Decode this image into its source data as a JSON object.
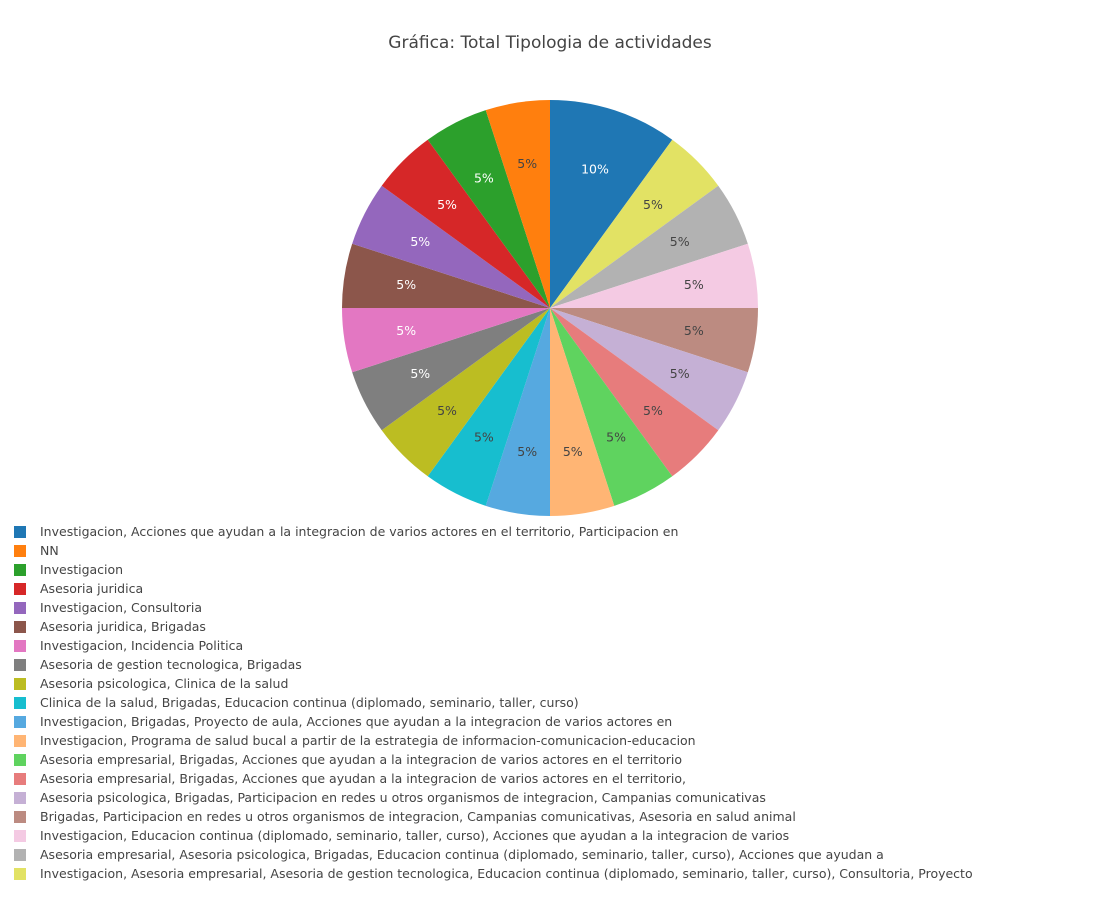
{
  "chart_data": {
    "type": "pie",
    "title": "Gráfica: Total Tipologia de actividades",
    "legend_position": "bottom-left",
    "slices": [
      {
        "label": "Investigacion, Acciones que ayudan a la integracion de varios actores en el territorio, Participacion en",
        "value": 10,
        "text": "10%",
        "color": "#1f77b4"
      },
      {
        "label": "Investigacion, Asesoria empresarial, Asesoria de gestion tecnologica, Educacion continua (diplomado, seminario, taller, curso), Consultoria, Proyecto",
        "value": 5,
        "text": "5%",
        "color": "#e2e264"
      },
      {
        "label": "Asesoria empresarial, Asesoria psicologica, Brigadas, Educacion continua (diplomado, seminario, taller, curso), Acciones que ayudan a",
        "value": 5,
        "text": "5%",
        "color": "#b2b2b2"
      },
      {
        "label": "Investigacion, Educacion continua (diplomado, seminario, taller, curso), Acciones que ayudan a la integracion de varios",
        "value": 5,
        "text": "5%",
        "color": "#f4cae3"
      },
      {
        "label": "Brigadas, Participacion en redes u otros organismos de integracion, Campanias comunicativas, Asesoria en salud animal",
        "value": 5,
        "text": "5%",
        "color": "#bc8b81"
      },
      {
        "label": "Asesoria psicologica, Brigadas, Participacion en redes u otros organismos de integracion, Campanias comunicativas",
        "value": 5,
        "text": "5%",
        "color": "#c5b0d5"
      },
      {
        "label": "Asesoria empresarial, Brigadas, Acciones que ayudan a la integracion de varios actores en el territorio,",
        "value": 5,
        "text": "5%",
        "color": "#e77c7c"
      },
      {
        "label": "Asesoria empresarial, Brigadas, Acciones que ayudan a la integracion de varios actores en el territorio",
        "value": 5,
        "text": "5%",
        "color": "#5fd35f"
      },
      {
        "label": "Investigacion, Programa de salud bucal a partir de la estrategia de informacion-comunicacion-educacion",
        "value": 5,
        "text": "5%",
        "color": "#ffb574"
      },
      {
        "label": "Investigacion, Brigadas, Proyecto de aula, Acciones que ayudan a la integracion de varios actores en",
        "value": 5,
        "text": "5%",
        "color": "#56a9e0"
      },
      {
        "label": "Clinica de la salud, Brigadas, Educacion continua (diplomado, seminario, taller, curso)",
        "value": 5,
        "text": "5%",
        "color": "#17becf"
      },
      {
        "label": "Asesoria psicologica, Clinica de la salud",
        "value": 5,
        "text": "5%",
        "color": "#bcbd22"
      },
      {
        "label": "Asesoria de gestion tecnologica, Brigadas",
        "value": 5,
        "text": "5%",
        "color": "#7f7f7f"
      },
      {
        "label": "Investigacion, Incidencia Politica",
        "value": 5,
        "text": "5%",
        "color": "#e377c2"
      },
      {
        "label": "Asesoria juridica, Brigadas",
        "value": 5,
        "text": "5%",
        "color": "#8c564b"
      },
      {
        "label": "Investigacion, Consultoria",
        "value": 5,
        "text": "5%",
        "color": "#9467bd"
      },
      {
        "label": "Asesoria juridica",
        "value": 5,
        "text": "5%",
        "color": "#d62728"
      },
      {
        "label": "Investigacion",
        "value": 5,
        "text": "5%",
        "color": "#2ca02c"
      },
      {
        "label": "NN",
        "value": 5,
        "text": "5%",
        "color": "#ff7f0e"
      }
    ],
    "legend_order": [
      "Investigacion, Acciones que ayudan a la integracion de varios actores en el territorio, Participacion en",
      "NN",
      "Investigacion",
      "Asesoria juridica",
      "Investigacion, Consultoria",
      "Asesoria juridica, Brigadas",
      "Investigacion, Incidencia Politica",
      "Asesoria de gestion tecnologica, Brigadas",
      "Asesoria psicologica, Clinica de la salud",
      "Clinica de la salud, Brigadas, Educacion continua (diplomado, seminario, taller, curso)",
      "Investigacion, Brigadas, Proyecto de aula, Acciones que ayudan a la integracion de varios actores en",
      "Investigacion, Programa de salud bucal a partir de la estrategia de informacion-comunicacion-educacion",
      "Asesoria empresarial, Brigadas, Acciones que ayudan a la integracion de varios actores en el territorio",
      "Asesoria empresarial, Brigadas, Acciones que ayudan a la integracion de varios actores en el territorio,",
      "Asesoria psicologica, Brigadas, Participacion en redes u otros organismos de integracion, Campanias comunicativas",
      "Brigadas, Participacion en redes u otros organismos de integracion, Campanias comunicativas, Asesoria en salud animal",
      "Investigacion, Educacion continua (diplomado, seminario, taller, curso), Acciones que ayudan a la integracion de varios",
      "Asesoria empresarial, Asesoria psicologica, Brigadas, Educacion continua (diplomado, seminario, taller, curso), Acciones que ayudan a",
      "Investigacion, Asesoria empresarial, Asesoria de gestion tecnologica, Educacion continua (diplomado, seminario, taller, curso), Consultoria, Proyecto"
    ]
  }
}
